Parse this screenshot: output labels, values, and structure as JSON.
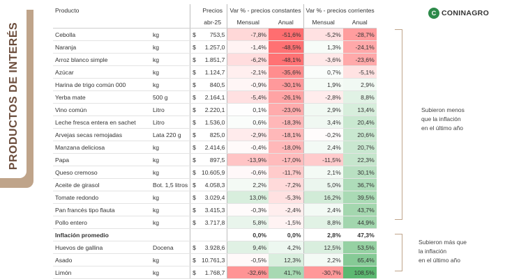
{
  "side_title": "PRODUCTOS DE INTERÉS",
  "logo": {
    "text": "CONINAGRO",
    "mark": "C",
    "brand_color": "#2d8a4a"
  },
  "header": {
    "product": "Producto",
    "price_line1": "Precios",
    "price_line2": "abr-25",
    "const_group": "Var % - precios constantes",
    "curr_group": "Var % - precios corrientes",
    "monthly": "Mensual",
    "annual": "Anual"
  },
  "currency_symbol": "$",
  "rows": [
    {
      "name": "Cebolla",
      "unit": "kg",
      "price": "753,5",
      "pm": "-7,8%",
      "pa": "-51,6%",
      "cm": "-5,2%",
      "ca": "-28,7%"
    },
    {
      "name": "Naranja",
      "unit": "kg",
      "price": "1.257,0",
      "pm": "-1,4%",
      "pa": "-48,5%",
      "cm": "1,3%",
      "ca": "-24,1%"
    },
    {
      "name": "Arroz blanco simple",
      "unit": "kg",
      "price": "1.851,7",
      "pm": "-6,2%",
      "pa": "-48,1%",
      "cm": "-3,6%",
      "ca": "-23,6%"
    },
    {
      "name": "Azúcar",
      "unit": "kg",
      "price": "1.124,7",
      "pm": "-2,1%",
      "pa": "-35,6%",
      "cm": "0,7%",
      "ca": "-5,1%"
    },
    {
      "name": "Harina de trigo común 000",
      "unit": "kg",
      "price": "840,5",
      "pm": "-0,9%",
      "pa": "-30,1%",
      "cm": "1,9%",
      "ca": "2,9%"
    },
    {
      "name": "Yerba mate",
      "unit": "500 g",
      "price": "2.164,1",
      "pm": "-5,4%",
      "pa": "-26,1%",
      "cm": "-2,8%",
      "ca": "8,8%"
    },
    {
      "name": "Vino común",
      "unit": "Litro",
      "price": "2.220,1",
      "pm": "0,1%",
      "pa": "-23,0%",
      "cm": "2,9%",
      "ca": "13,4%"
    },
    {
      "name": "Leche fresca entera en sachet",
      "unit": "Litro",
      "price": "1.536,0",
      "pm": "0,6%",
      "pa": "-18,3%",
      "cm": "3,4%",
      "ca": "20,4%"
    },
    {
      "name": "Arvejas secas remojadas",
      "unit": "Lata 220 g",
      "price": "825,0",
      "pm": "-2,9%",
      "pa": "-18,1%",
      "cm": "-0,2%",
      "ca": "20,6%"
    },
    {
      "name": "Manzana deliciosa",
      "unit": "kg",
      "price": "2.414,6",
      "pm": "-0,4%",
      "pa": "-18,0%",
      "cm": "2,4%",
      "ca": "20,7%"
    },
    {
      "name": "Papa",
      "unit": "kg",
      "price": "897,5",
      "pm": "-13,9%",
      "pa": "-17,0%",
      "cm": "-11,5%",
      "ca": "22,3%"
    },
    {
      "name": "Queso cremoso",
      "unit": "kg",
      "price": "10.605,9",
      "pm": "-0,6%",
      "pa": "-11,7%",
      "cm": "2,1%",
      "ca": "30,1%"
    },
    {
      "name": "Aceite de girasol",
      "unit": "Bot. 1,5 litros",
      "price": "4.058,3",
      "pm": "2,2%",
      "pa": "-7,2%",
      "cm": "5,0%",
      "ca": "36,7%"
    },
    {
      "name": "Tomate redondo",
      "unit": "kg",
      "price": "3.029,4",
      "pm": "13,0%",
      "pa": "-5,3%",
      "cm": "16,2%",
      "ca": "39,5%"
    },
    {
      "name": "Pan francés tipo flauta",
      "unit": "kg",
      "price": "3.415,3",
      "pm": "-0,3%",
      "pa": "-2,4%",
      "cm": "2,4%",
      "ca": "43,7%"
    },
    {
      "name": "Pollo entero",
      "unit": "kg",
      "price": "3.717,8",
      "pm": "5,8%",
      "pa": "-1,5%",
      "cm": "8,8%",
      "ca": "44,9%"
    },
    {
      "name": "Inflación promedio",
      "unit": "",
      "price": "",
      "pm": "0,0%",
      "pa": "0,0%",
      "cm": "2,8%",
      "ca": "47,3%",
      "is_summary": true
    },
    {
      "name": "Huevos de gallina",
      "unit": "Docena",
      "price": "3.928,6",
      "pm": "9,4%",
      "pa": "4,2%",
      "cm": "12,5%",
      "ca": "53,5%"
    },
    {
      "name": "Asado",
      "unit": "kg",
      "price": "10.761,3",
      "pm": "-0,5%",
      "pa": "12,3%",
      "cm": "2,2%",
      "ca": "65,4%"
    },
    {
      "name": "Limón",
      "unit": "kg",
      "price": "1.768,7",
      "pm": "-32,6%",
      "pa": "41,7%",
      "cm": "-30,7%",
      "ca": "108,5%"
    }
  ],
  "notes": {
    "below_line1": "Subieron menos",
    "below_line2": "que la inflación",
    "below_line3": "en el último año",
    "above_line1": "Subieron más que",
    "above_line2": "la inflación",
    "above_line3": "en el último año"
  },
  "colors": {
    "accent": "#bfa48a",
    "red_strong": "#e8777a",
    "green_strong": "#5cb871"
  }
}
